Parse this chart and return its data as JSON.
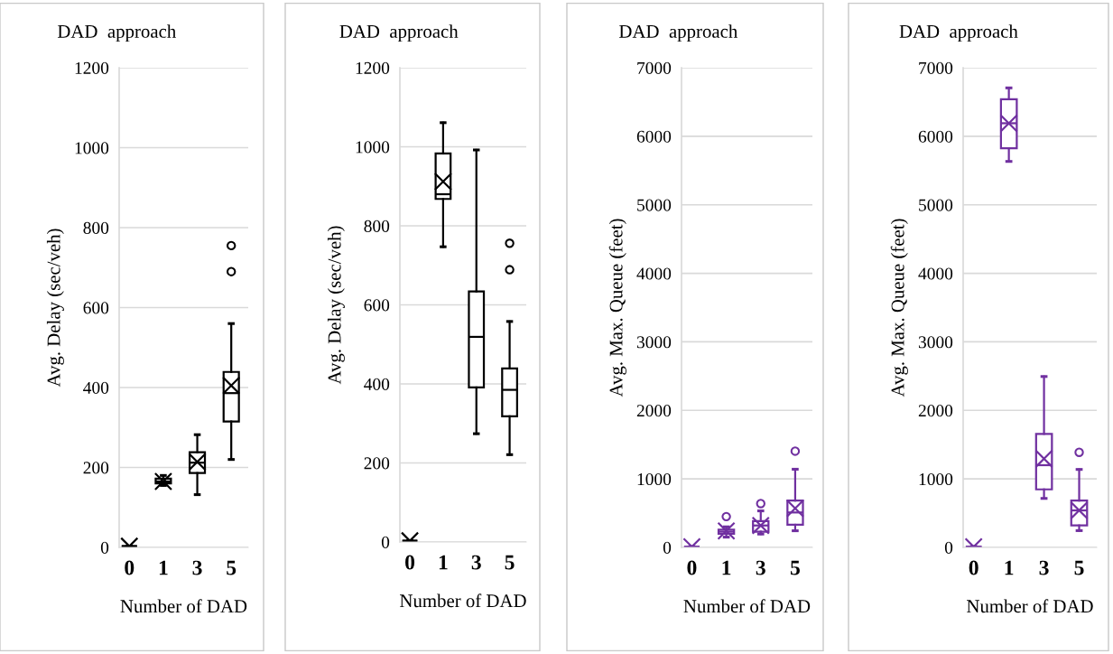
{
  "chart_data": [
    {
      "type": "box",
      "title": "DAD  approach",
      "xlabel": "Number of DAD",
      "ylabel": "Avg. Delay (sec/veh)",
      "categories": [
        "0",
        "1",
        "3",
        "5"
      ],
      "ylim": [
        0,
        1200
      ],
      "yticks": [
        0,
        200,
        400,
        600,
        800,
        1000,
        1200
      ],
      "grid": "y",
      "series": [
        {
          "color": "#000000",
          "boxes": [
            {
              "low": 3,
              "q1": 3,
              "median": 3,
              "q3": 3,
              "high": 3,
              "mean": 3
            },
            {
              "low": 155,
              "q1": 160,
              "median": 165,
              "q3": 172,
              "high": 180,
              "mean": 165
            },
            {
              "low": 132,
              "q1": 186,
              "median": 212,
              "q3": 238,
              "high": 282,
              "mean": 214
            },
            {
              "low": 220,
              "q1": 315,
              "median": 386,
              "q3": 439,
              "high": 560,
              "mean": 405,
              "outliers": [
                690,
                755
              ]
            }
          ]
        }
      ]
    },
    {
      "type": "box",
      "title": "DAD  approach",
      "xlabel": "Number of DAD",
      "ylabel": "Avg. Delay (sec/veh)",
      "categories": [
        "0",
        "1",
        "3",
        "5"
      ],
      "ylim": [
        0,
        1200
      ],
      "yticks": [
        0,
        200,
        400,
        600,
        800,
        1000,
        1200
      ],
      "grid": "y",
      "series": [
        {
          "color": "#000000",
          "boxes": [
            {
              "low": 3,
              "q1": 3,
              "median": 3,
              "q3": 3,
              "high": 3,
              "mean": 3
            },
            {
              "low": 747,
              "q1": 868,
              "median": 880,
              "q3": 983,
              "high": 1061,
              "mean": 912
            },
            {
              "low": 274,
              "q1": 391,
              "median": 519,
              "q3": 634,
              "high": 992
            },
            {
              "low": 221,
              "q1": 318,
              "median": 385,
              "q3": 439,
              "high": 558,
              "outliers": [
                689,
                756
              ]
            }
          ]
        }
      ]
    },
    {
      "type": "box",
      "title": "DAD  approach",
      "xlabel": "Number of DAD",
      "ylabel": "Avg. Max. Queue (feet)",
      "categories": [
        "0",
        "1",
        "3",
        "5"
      ],
      "ylim": [
        0,
        7000
      ],
      "yticks": [
        0,
        1000,
        2000,
        3000,
        4000,
        5000,
        6000,
        7000
      ],
      "grid": "y",
      "series": [
        {
          "color": "#7030a0",
          "boxes": [
            {
              "low": 10,
              "q1": 10,
              "median": 10,
              "q3": 10,
              "high": 10,
              "mean": 10
            },
            {
              "low": 150,
              "q1": 200,
              "median": 230,
              "q3": 260,
              "high": 300,
              "mean": 240,
              "outliers": [
                450
              ]
            },
            {
              "low": 195,
              "q1": 230,
              "median": 320,
              "q3": 385,
              "high": 533,
              "mean": 320,
              "outliers": [
                640
              ]
            },
            {
              "low": 243,
              "q1": 330,
              "median": 510,
              "q3": 683,
              "high": 1141,
              "mean": 570,
              "outliers": [
                1405
              ]
            }
          ]
        }
      ]
    },
    {
      "type": "box",
      "title": "DAD  approach",
      "xlabel": "Number of DAD",
      "ylabel": "Avg. Max. Queue (feet)",
      "categories": [
        "0",
        "1",
        "3",
        "5"
      ],
      "ylim": [
        0,
        7000
      ],
      "yticks": [
        0,
        1000,
        2000,
        3000,
        4000,
        5000,
        6000,
        7000
      ],
      "grid": "y",
      "series": [
        {
          "color": "#7030a0",
          "boxes": [
            {
              "low": 10,
              "q1": 10,
              "median": 10,
              "q3": 10,
              "high": 10,
              "mean": 10
            },
            {
              "low": 5633,
              "q1": 5826,
              "median": 6190,
              "q3": 6541,
              "high": 6706,
              "mean": 6189
            },
            {
              "low": 715,
              "q1": 847,
              "median": 1200,
              "q3": 1657,
              "high": 2494,
              "mean": 1294
            },
            {
              "low": 245,
              "q1": 320,
              "median": 540,
              "q3": 683,
              "high": 1138,
              "mean": 541,
              "outliers": [
                1388
              ]
            }
          ]
        }
      ]
    }
  ]
}
